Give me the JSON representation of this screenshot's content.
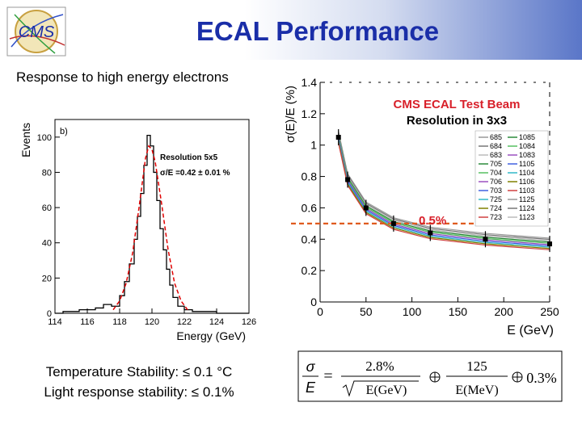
{
  "header": {
    "title": "ECAL Performance",
    "logo_text": "CMS"
  },
  "subtitle": "Response to high energy electrons",
  "histogram": {
    "panel_label": "b)",
    "annotation_title": "Resolution 5x5",
    "annotation_value": "σ/E =0.42 ± 0.01 %"
  },
  "resolution_plot": {
    "title_line1": "CMS ECAL Test Beam",
    "title_line2": "Resolution in 3x3",
    "reference_label": "0.5%",
    "legend": {
      "col1": [
        "685",
        "684",
        "683",
        "705",
        "704",
        "706",
        "703",
        "725",
        "724",
        "723"
      ],
      "col2": [
        "1085",
        "1084",
        "1083",
        "1105",
        "1104",
        "1106",
        "1103",
        "1125",
        "1124",
        "1123"
      ]
    }
  },
  "formula": {
    "lhs_num": "σ",
    "lhs_den": "E",
    "stoch_num": "2.8%",
    "stoch_den": "E(GeV)",
    "noise_num": "125",
    "noise_den": "E(MeV)",
    "constant": "0.3%"
  },
  "stability": {
    "line1": "Temperature Stability: ≤ 0.1 °C",
    "line2": "Light response stability: ≤  0.1%"
  },
  "colors": {
    "title": "#1a2ea8",
    "ref_line": "#e05a1e",
    "fit": "#e00000",
    "beam_title": "#d8202a"
  },
  "chart_data": [
    {
      "type": "line",
      "xlabel": "Energy (GeV)",
      "ylabel": "Events",
      "xlim": [
        114,
        126
      ],
      "ylim": [
        0,
        110
      ],
      "xticks": [
        114,
        116,
        118,
        120,
        122,
        124,
        126
      ],
      "yticks": [
        0,
        20,
        40,
        60,
        80,
        100
      ],
      "series": [
        {
          "x": [
            114.0,
            114.5,
            115.0,
            115.5,
            116.0,
            116.5,
            117.0,
            117.5,
            118.0,
            118.3,
            118.6,
            118.9,
            119.1,
            119.3,
            119.5,
            119.7,
            119.9,
            120.1,
            120.3,
            120.5,
            120.7,
            120.9,
            121.1,
            121.3,
            121.6,
            122.0,
            122.5,
            123.0,
            124.0,
            125.0,
            126.0
          ],
          "y": [
            0,
            1,
            1,
            2,
            2,
            3,
            5,
            4,
            10,
            18,
            28,
            42,
            55,
            68,
            84,
            101,
            95,
            80,
            64,
            48,
            36,
            25,
            16,
            9,
            4,
            2,
            1,
            1,
            0,
            0,
            0
          ]
        },
        {
          "x": [
            117.6,
            118.0,
            118.4,
            118.8,
            119.2,
            119.6,
            119.8,
            120.0,
            120.2,
            120.6,
            121.0,
            121.4,
            121.8,
            122.2
          ],
          "y": [
            2,
            7,
            17,
            34,
            60,
            88,
            95,
            93,
            86,
            62,
            36,
            17,
            7,
            2
          ]
        }
      ]
    },
    {
      "type": "scatter",
      "xlabel": "E (GeV)",
      "ylabel": "σ(E)/E (%)",
      "xlim": [
        0,
        250
      ],
      "ylim": [
        0,
        1.4
      ],
      "xticks": [
        0,
        50,
        100,
        150,
        200,
        250
      ],
      "yticks": [
        0,
        0.2,
        0.4,
        0.6,
        0.8,
        1,
        1.2,
        1.4
      ],
      "reference_line": 0.5,
      "series": [
        {
          "x": [
            20,
            30,
            50,
            80,
            120,
            180,
            250
          ],
          "y": [
            1.05,
            0.78,
            0.6,
            0.5,
            0.44,
            0.4,
            0.37
          ]
        }
      ]
    }
  ]
}
